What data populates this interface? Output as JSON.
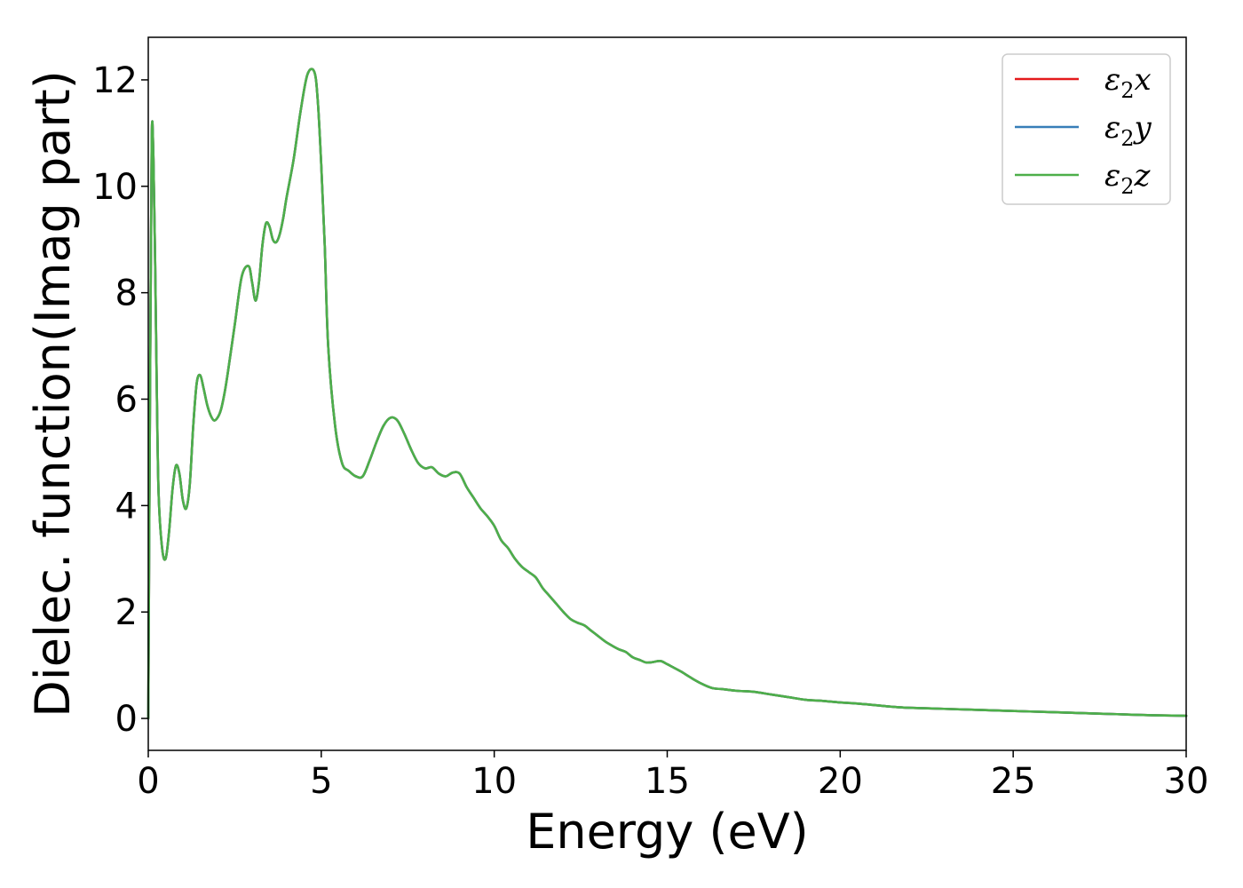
{
  "chart_data": {
    "type": "line",
    "title": "",
    "xlabel": "Energy (eV)",
    "ylabel": "Dielec. function(Imag part)",
    "xlim": [
      0,
      30
    ],
    "ylim": [
      -0.6,
      12.8
    ],
    "xticks": [
      0,
      5,
      10,
      15,
      20,
      25,
      30
    ],
    "yticks": [
      0,
      2,
      4,
      6,
      8,
      10,
      12
    ],
    "xtick_labels": [
      "0",
      "5",
      "10",
      "15",
      "20",
      "25",
      "30"
    ],
    "ytick_labels": [
      "0",
      "2",
      "4",
      "6",
      "8",
      "10",
      "12"
    ],
    "grid": false,
    "legend_position": "top-right",
    "series": [
      {
        "name": "ε₂x",
        "legend": {
          "base": "ε",
          "sub": "2",
          "suffix": "x"
        },
        "color": "#e41a1c",
        "x": [
          0,
          0.05,
          0.1,
          0.15,
          0.2,
          0.25,
          0.3,
          0.4,
          0.5,
          0.6,
          0.7,
          0.8,
          0.9,
          1.0,
          1.1,
          1.2,
          1.3,
          1.4,
          1.5,
          1.6,
          1.7,
          1.8,
          1.9,
          2.0,
          2.1,
          2.2,
          2.3,
          2.5,
          2.7,
          2.9,
          3.0,
          3.1,
          3.2,
          3.3,
          3.4,
          3.5,
          3.6,
          3.7,
          3.8,
          3.9,
          4.0,
          4.2,
          4.4,
          4.6,
          4.8,
          4.9,
          5.0,
          5.1,
          5.2,
          5.4,
          5.6,
          5.8,
          6.0,
          6.2,
          6.4,
          6.6,
          6.8,
          7.0,
          7.2,
          7.4,
          7.6,
          7.8,
          8.0,
          8.2,
          8.4,
          8.6,
          8.8,
          9.0,
          9.2,
          9.4,
          9.6,
          9.8,
          10.0,
          10.2,
          10.4,
          10.6,
          10.8,
          11.0,
          11.2,
          11.4,
          11.6,
          11.8,
          12.0,
          12.2,
          12.4,
          12.6,
          12.8,
          13.0,
          13.2,
          13.4,
          13.6,
          13.8,
          14.0,
          14.2,
          14.4,
          14.6,
          14.8,
          15.0,
          15.2,
          15.4,
          15.6,
          15.8,
          16.0,
          16.3,
          16.6,
          17.0,
          17.5,
          18.0,
          18.5,
          19.0,
          19.5,
          20.0,
          20.5,
          21.0,
          21.5,
          22.0,
          23.0,
          24.0,
          25.0,
          26.0,
          27.0,
          28.0,
          29.0,
          30.0
        ],
        "y": [
          0.0,
          6.0,
          10.9,
          10.5,
          8.5,
          6.0,
          4.2,
          3.2,
          3.0,
          3.5,
          4.3,
          4.75,
          4.6,
          4.1,
          3.95,
          4.4,
          5.5,
          6.3,
          6.45,
          6.2,
          5.9,
          5.7,
          5.6,
          5.65,
          5.8,
          6.1,
          6.5,
          7.4,
          8.3,
          8.5,
          8.2,
          7.85,
          8.2,
          8.9,
          9.3,
          9.25,
          9.0,
          8.95,
          9.1,
          9.4,
          9.8,
          10.5,
          11.4,
          12.1,
          12.15,
          11.6,
          10.4,
          8.9,
          7.0,
          5.5,
          4.8,
          4.65,
          4.55,
          4.55,
          4.85,
          5.2,
          5.5,
          5.65,
          5.6,
          5.35,
          5.05,
          4.8,
          4.7,
          4.72,
          4.6,
          4.55,
          4.62,
          4.6,
          4.35,
          4.15,
          3.95,
          3.8,
          3.62,
          3.35,
          3.2,
          3.0,
          2.85,
          2.75,
          2.65,
          2.45,
          2.3,
          2.15,
          2.0,
          1.87,
          1.8,
          1.75,
          1.65,
          1.55,
          1.45,
          1.37,
          1.3,
          1.25,
          1.15,
          1.1,
          1.05,
          1.06,
          1.08,
          1.02,
          0.95,
          0.88,
          0.8,
          0.72,
          0.65,
          0.57,
          0.55,
          0.52,
          0.5,
          0.45,
          0.4,
          0.35,
          0.33,
          0.3,
          0.28,
          0.25,
          0.22,
          0.2,
          0.18,
          0.16,
          0.14,
          0.12,
          0.1,
          0.08,
          0.06,
          0.05
        ]
      },
      {
        "name": "ε₂y",
        "legend": {
          "base": "ε",
          "sub": "2",
          "suffix": "y"
        },
        "color": "#377eb8",
        "same_as": 0
      },
      {
        "name": "ε₂z",
        "legend": {
          "base": "ε",
          "sub": "2",
          "suffix": "z"
        },
        "color": "#4daf4a",
        "same_as": 0
      }
    ]
  }
}
